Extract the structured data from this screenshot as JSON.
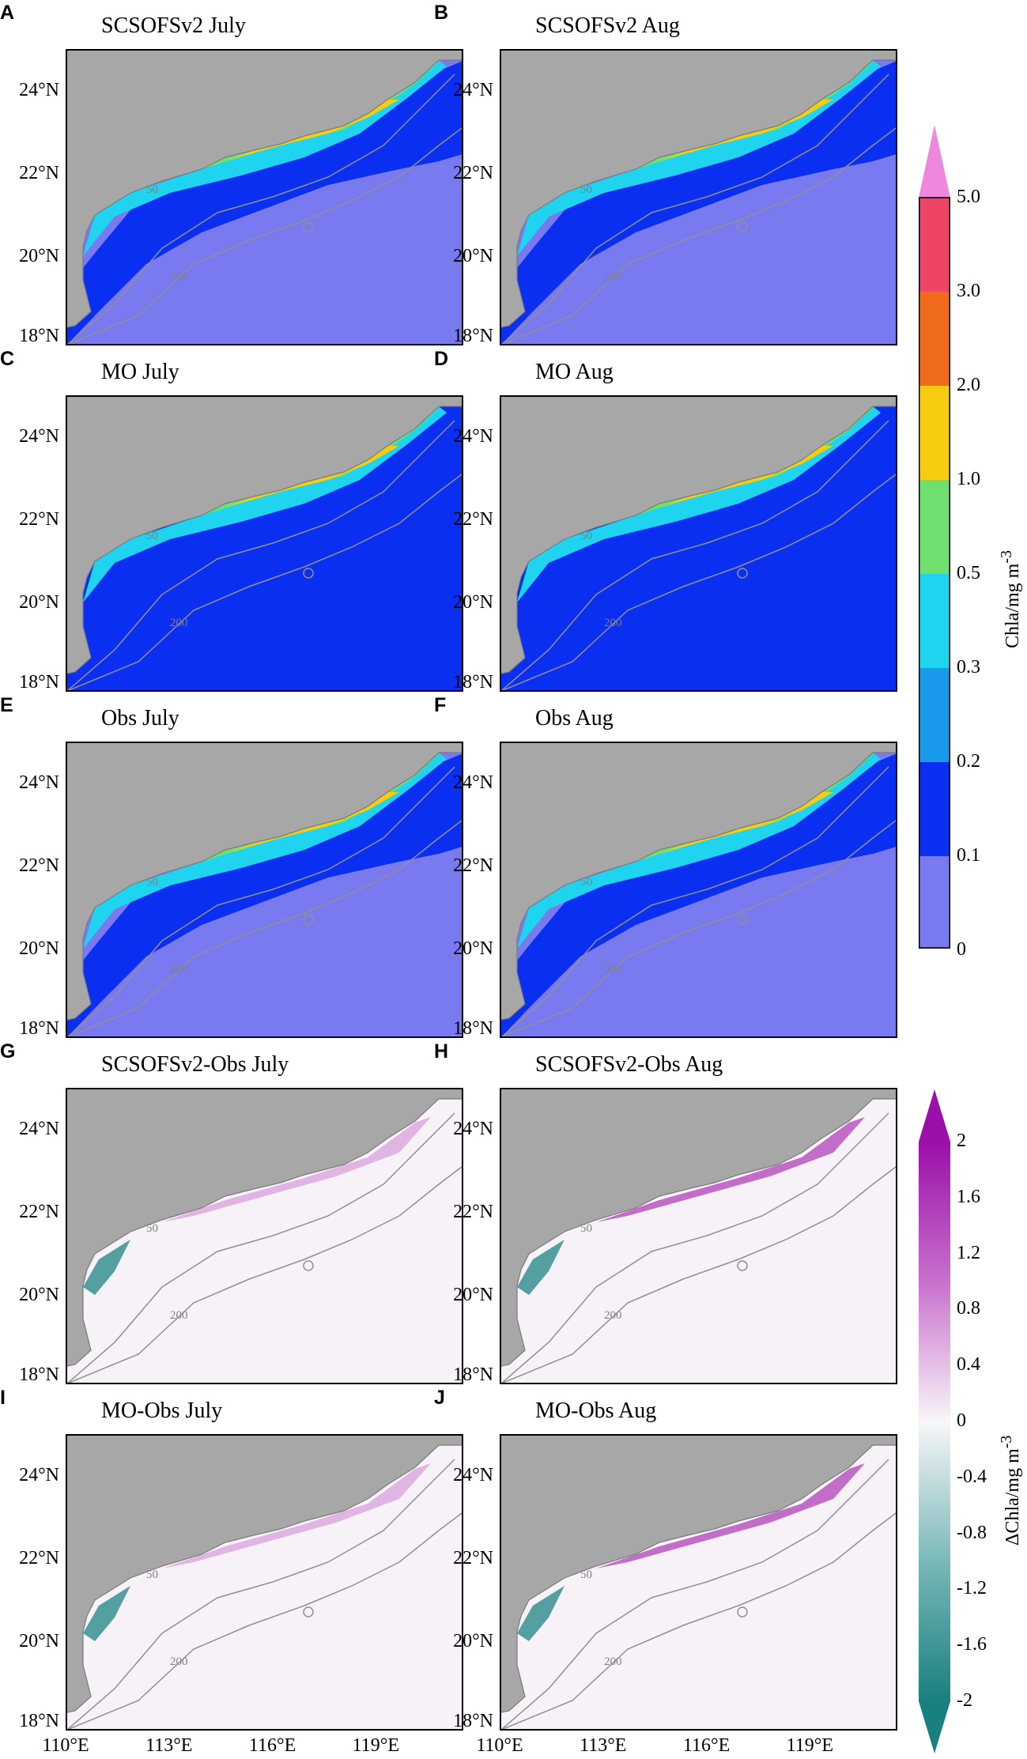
{
  "figure": {
    "panels": [
      {
        "letter": "A",
        "title": "SCSOFSv2 July",
        "field": "chl",
        "month": "July",
        "source": "SCSOFSv2"
      },
      {
        "letter": "B",
        "title": "SCSOFSv2 Aug",
        "field": "chl",
        "month": "Aug",
        "source": "SCSOFSv2"
      },
      {
        "letter": "C",
        "title": "MO July",
        "field": "chl",
        "month": "July",
        "source": "MO"
      },
      {
        "letter": "D",
        "title": "MO Aug",
        "field": "chl",
        "month": "Aug",
        "source": "MO"
      },
      {
        "letter": "E",
        "title": "Obs July",
        "field": "chl",
        "month": "July",
        "source": "Obs"
      },
      {
        "letter": "F",
        "title": "Obs Aug",
        "field": "chl",
        "month": "Aug",
        "source": "Obs"
      },
      {
        "letter": "G",
        "title": "SCSOFSv2-Obs July",
        "field": "diff",
        "month": "July",
        "source": "SCSOFSv2-Obs"
      },
      {
        "letter": "H",
        "title": "SCSOFSv2-Obs Aug",
        "field": "diff",
        "month": "Aug",
        "source": "SCSOFSv2-Obs"
      },
      {
        "letter": "I",
        "title": "MO-Obs July",
        "field": "diff",
        "month": "July",
        "source": "MO-Obs"
      },
      {
        "letter": "J",
        "title": "MO-Obs Aug",
        "field": "diff",
        "month": "Aug",
        "source": "MO-Obs"
      }
    ],
    "lat_ticks": [
      "24°N",
      "22°N",
      "20°N",
      "18°N"
    ],
    "lon_ticks": [
      "110°E",
      "113°E",
      "116°E",
      "119°E"
    ],
    "contour_labels": [
      "50",
      "200"
    ],
    "colorbar_chl": {
      "title": "Chla/mg m",
      "title_sup": "-3",
      "ticks": [
        "5.0",
        "3.0",
        "2.0",
        "1.0",
        "0.5",
        "0.3",
        "0.2",
        "0.1",
        "0"
      ],
      "colors": [
        "#ee88dd",
        "#ee4466",
        "#f06a1c",
        "#f7cc10",
        "#6fe06f",
        "#1ed4ee",
        "#1a9aee",
        "#0a2ff0",
        "#7a7af0"
      ]
    },
    "colorbar_diff": {
      "title": "ΔChla/mg m",
      "title_sup": "-3",
      "ticks": [
        "2",
        "1.6",
        "1.2",
        "0.8",
        "0.4",
        "0",
        "-0.4",
        "-0.8",
        "-1.2",
        "-1.6",
        "-2"
      ],
      "colors": [
        "#9a10a8",
        "#f5f0f5",
        "#1a7f7f"
      ]
    },
    "colors": {
      "land": "#a7a7a7",
      "deep_low": "#7a7af0",
      "contour": "#909090"
    }
  }
}
